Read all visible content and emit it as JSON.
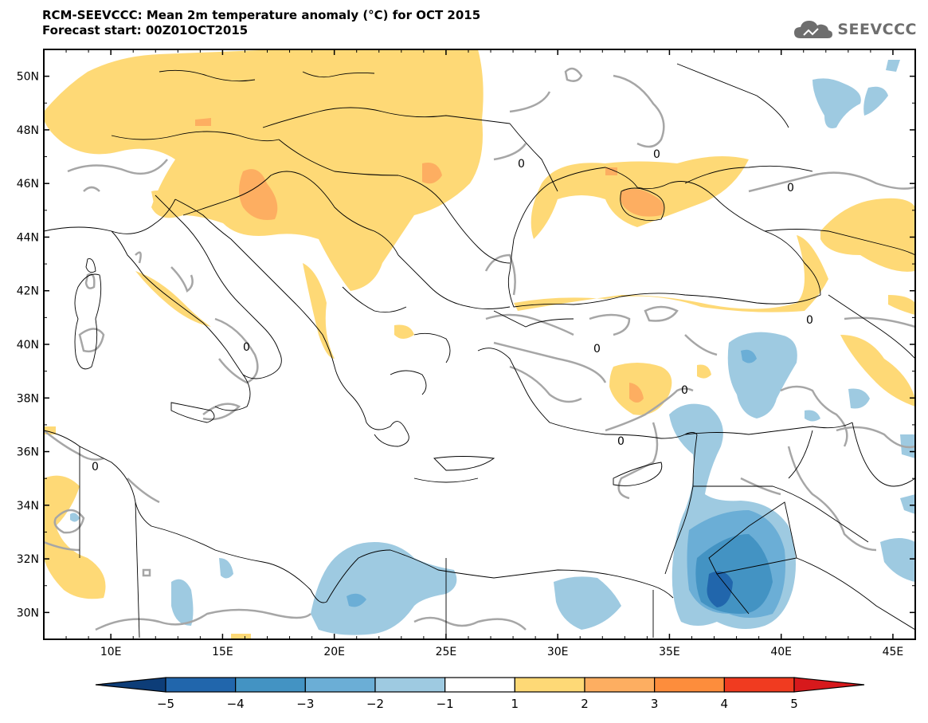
{
  "header": {
    "title": "RCM-SEEVCCC: Mean 2m temperature anomaly (°C) for OCT 2015",
    "subtitle": "Forecast start: 00Z01OCT2015"
  },
  "logo": {
    "text": "SEEVCCC",
    "icon": "cloud-icon"
  },
  "map": {
    "lon_range": [
      7,
      46
    ],
    "lat_range": [
      29,
      51
    ],
    "lat_ticks": [
      "30N",
      "32N",
      "34N",
      "36N",
      "38N",
      "40N",
      "42N",
      "44N",
      "46N",
      "48N",
      "50N"
    ],
    "lon_ticks": [
      "10E",
      "15E",
      "20E",
      "25E",
      "30E",
      "35E",
      "40E",
      "45E"
    ],
    "contour_label": "0",
    "contour_color": "#a6a6a6"
  },
  "colorbar": {
    "labels": [
      "−5",
      "−4",
      "−3",
      "−2",
      "−1",
      "1",
      "2",
      "3",
      "4",
      "5"
    ],
    "colors": [
      "#0d3d78",
      "#2166ac",
      "#4393c3",
      "#6baed6",
      "#9ecae1",
      "#ffffff",
      "#fed976",
      "#fdae61",
      "#fd8d3c",
      "#f03b20",
      "#d7191c"
    ]
  }
}
